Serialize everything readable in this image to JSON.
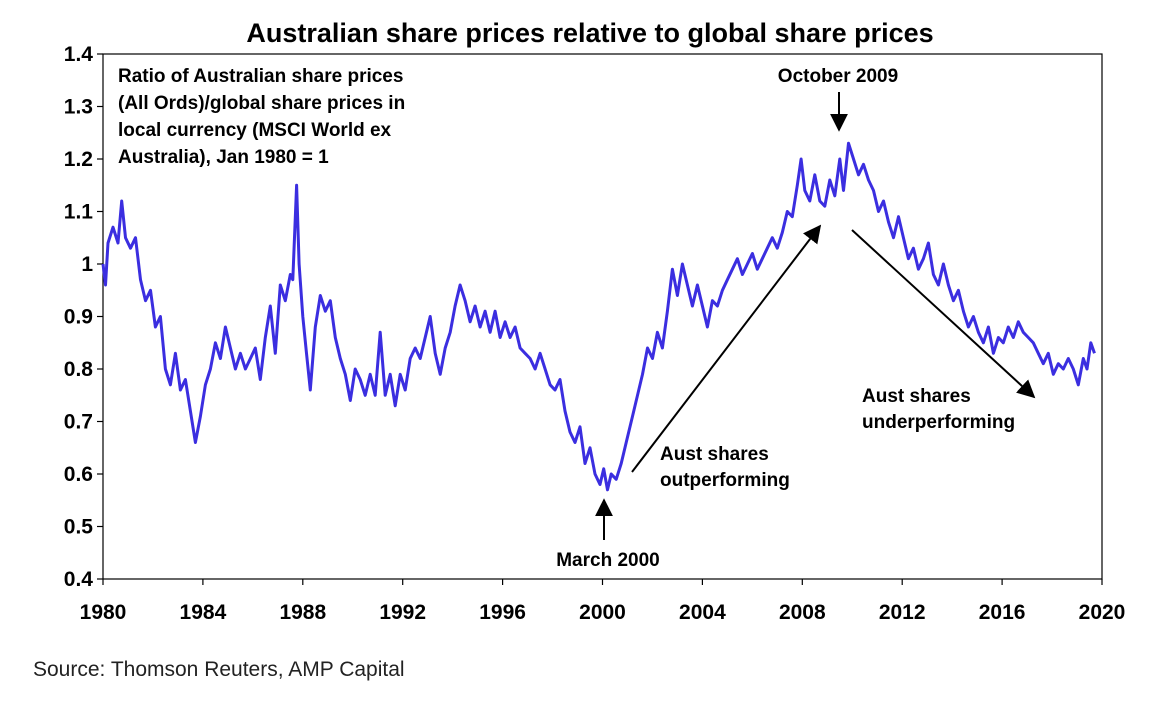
{
  "chart_data": {
    "type": "line",
    "title": "Australian share prices relative to global share prices",
    "xlabel": "",
    "ylabel": "",
    "xlim": [
      1980,
      2020
    ],
    "ylim": [
      0.4,
      1.4
    ],
    "x_ticks": [
      "1980",
      "1984",
      "1988",
      "1992",
      "1996",
      "2000",
      "2004",
      "2008",
      "2012",
      "2016",
      "2020"
    ],
    "y_ticks": [
      "0.4",
      "0.5",
      "0.6",
      "0.7",
      "0.8",
      "0.9",
      "1",
      "1.1",
      "1.2",
      "1.3",
      "1.4"
    ],
    "grid": false,
    "series_color": "#3b2ee0",
    "series": [
      {
        "values": [
          [
            1980.0,
            1.0
          ],
          [
            1980.1,
            0.96
          ],
          [
            1980.2,
            1.04
          ],
          [
            1980.4,
            1.07
          ],
          [
            1980.6,
            1.04
          ],
          [
            1980.75,
            1.12
          ],
          [
            1980.9,
            1.05
          ],
          [
            1981.1,
            1.03
          ],
          [
            1981.3,
            1.05
          ],
          [
            1981.5,
            0.97
          ],
          [
            1981.7,
            0.93
          ],
          [
            1981.9,
            0.95
          ],
          [
            1982.1,
            0.88
          ],
          [
            1982.3,
            0.9
          ],
          [
            1982.5,
            0.8
          ],
          [
            1982.7,
            0.77
          ],
          [
            1982.9,
            0.83
          ],
          [
            1983.1,
            0.76
          ],
          [
            1983.3,
            0.78
          ],
          [
            1983.5,
            0.72
          ],
          [
            1983.7,
            0.66
          ],
          [
            1983.9,
            0.71
          ],
          [
            1984.1,
            0.77
          ],
          [
            1984.3,
            0.8
          ],
          [
            1984.5,
            0.85
          ],
          [
            1984.7,
            0.82
          ],
          [
            1984.9,
            0.88
          ],
          [
            1985.1,
            0.84
          ],
          [
            1985.3,
            0.8
          ],
          [
            1985.5,
            0.83
          ],
          [
            1985.7,
            0.8
          ],
          [
            1985.9,
            0.82
          ],
          [
            1986.1,
            0.84
          ],
          [
            1986.3,
            0.78
          ],
          [
            1986.5,
            0.86
          ],
          [
            1986.7,
            0.92
          ],
          [
            1986.9,
            0.83
          ],
          [
            1987.1,
            0.96
          ],
          [
            1987.3,
            0.93
          ],
          [
            1987.5,
            0.98
          ],
          [
            1987.6,
            0.97
          ],
          [
            1987.75,
            1.15
          ],
          [
            1987.85,
            1.0
          ],
          [
            1988.0,
            0.9
          ],
          [
            1988.15,
            0.83
          ],
          [
            1988.3,
            0.76
          ],
          [
            1988.5,
            0.88
          ],
          [
            1988.7,
            0.94
          ],
          [
            1988.9,
            0.91
          ],
          [
            1989.1,
            0.93
          ],
          [
            1989.3,
            0.86
          ],
          [
            1989.5,
            0.82
          ],
          [
            1989.7,
            0.79
          ],
          [
            1989.9,
            0.74
          ],
          [
            1990.1,
            0.8
          ],
          [
            1990.3,
            0.78
          ],
          [
            1990.5,
            0.75
          ],
          [
            1990.7,
            0.79
          ],
          [
            1990.9,
            0.75
          ],
          [
            1991.1,
            0.87
          ],
          [
            1991.3,
            0.75
          ],
          [
            1991.5,
            0.79
          ],
          [
            1991.7,
            0.73
          ],
          [
            1991.9,
            0.79
          ],
          [
            1992.1,
            0.76
          ],
          [
            1992.3,
            0.82
          ],
          [
            1992.5,
            0.84
          ],
          [
            1992.7,
            0.82
          ],
          [
            1992.9,
            0.86
          ],
          [
            1993.1,
            0.9
          ],
          [
            1993.3,
            0.83
          ],
          [
            1993.5,
            0.79
          ],
          [
            1993.7,
            0.84
          ],
          [
            1993.9,
            0.87
          ],
          [
            1994.1,
            0.92
          ],
          [
            1994.3,
            0.96
          ],
          [
            1994.5,
            0.93
          ],
          [
            1994.7,
            0.89
          ],
          [
            1994.9,
            0.92
          ],
          [
            1995.1,
            0.88
          ],
          [
            1995.3,
            0.91
          ],
          [
            1995.5,
            0.87
          ],
          [
            1995.7,
            0.91
          ],
          [
            1995.9,
            0.86
          ],
          [
            1996.1,
            0.89
          ],
          [
            1996.3,
            0.86
          ],
          [
            1996.5,
            0.88
          ],
          [
            1996.7,
            0.84
          ],
          [
            1996.9,
            0.83
          ],
          [
            1997.1,
            0.82
          ],
          [
            1997.3,
            0.8
          ],
          [
            1997.5,
            0.83
          ],
          [
            1997.7,
            0.8
          ],
          [
            1997.9,
            0.77
          ],
          [
            1998.1,
            0.76
          ],
          [
            1998.3,
            0.78
          ],
          [
            1998.5,
            0.72
          ],
          [
            1998.7,
            0.68
          ],
          [
            1998.9,
            0.66
          ],
          [
            1999.1,
            0.69
          ],
          [
            1999.3,
            0.62
          ],
          [
            1999.5,
            0.65
          ],
          [
            1999.7,
            0.6
          ],
          [
            1999.9,
            0.58
          ],
          [
            2000.05,
            0.61
          ],
          [
            2000.2,
            0.57
          ],
          [
            2000.35,
            0.6
          ],
          [
            2000.55,
            0.59
          ],
          [
            2000.75,
            0.62
          ],
          [
            2000.95,
            0.66
          ],
          [
            2001.2,
            0.71
          ],
          [
            2001.4,
            0.75
          ],
          [
            2001.6,
            0.79
          ],
          [
            2001.8,
            0.84
          ],
          [
            2002.0,
            0.82
          ],
          [
            2002.2,
            0.87
          ],
          [
            2002.4,
            0.84
          ],
          [
            2002.6,
            0.91
          ],
          [
            2002.8,
            0.99
          ],
          [
            2003.0,
            0.94
          ],
          [
            2003.2,
            1.0
          ],
          [
            2003.4,
            0.96
          ],
          [
            2003.6,
            0.92
          ],
          [
            2003.8,
            0.96
          ],
          [
            2004.0,
            0.92
          ],
          [
            2004.2,
            0.88
          ],
          [
            2004.4,
            0.93
          ],
          [
            2004.6,
            0.92
          ],
          [
            2004.8,
            0.95
          ],
          [
            2005.0,
            0.97
          ],
          [
            2005.2,
            0.99
          ],
          [
            2005.4,
            1.01
          ],
          [
            2005.6,
            0.98
          ],
          [
            2005.8,
            1.0
          ],
          [
            2006.0,
            1.02
          ],
          [
            2006.2,
            0.99
          ],
          [
            2006.4,
            1.01
          ],
          [
            2006.6,
            1.03
          ],
          [
            2006.8,
            1.05
          ],
          [
            2007.0,
            1.03
          ],
          [
            2007.2,
            1.06
          ],
          [
            2007.4,
            1.1
          ],
          [
            2007.6,
            1.09
          ],
          [
            2007.8,
            1.15
          ],
          [
            2007.95,
            1.2
          ],
          [
            2008.1,
            1.14
          ],
          [
            2008.3,
            1.12
          ],
          [
            2008.5,
            1.17
          ],
          [
            2008.7,
            1.12
          ],
          [
            2008.9,
            1.11
          ],
          [
            2009.1,
            1.16
          ],
          [
            2009.3,
            1.13
          ],
          [
            2009.5,
            1.2
          ],
          [
            2009.65,
            1.14
          ],
          [
            2009.85,
            1.23
          ],
          [
            2010.05,
            1.2
          ],
          [
            2010.25,
            1.17
          ],
          [
            2010.45,
            1.19
          ],
          [
            2010.65,
            1.16
          ],
          [
            2010.85,
            1.14
          ],
          [
            2011.05,
            1.1
          ],
          [
            2011.25,
            1.12
          ],
          [
            2011.45,
            1.08
          ],
          [
            2011.65,
            1.05
          ],
          [
            2011.85,
            1.09
          ],
          [
            2012.05,
            1.05
          ],
          [
            2012.25,
            1.01
          ],
          [
            2012.45,
            1.03
          ],
          [
            2012.65,
            0.99
          ],
          [
            2012.85,
            1.01
          ],
          [
            2013.05,
            1.04
          ],
          [
            2013.25,
            0.98
          ],
          [
            2013.45,
            0.96
          ],
          [
            2013.65,
            1.0
          ],
          [
            2013.85,
            0.96
          ],
          [
            2014.05,
            0.93
          ],
          [
            2014.25,
            0.95
          ],
          [
            2014.45,
            0.91
          ],
          [
            2014.65,
            0.88
          ],
          [
            2014.85,
            0.9
          ],
          [
            2015.05,
            0.87
          ],
          [
            2015.25,
            0.85
          ],
          [
            2015.45,
            0.88
          ],
          [
            2015.65,
            0.83
          ],
          [
            2015.85,
            0.86
          ],
          [
            2016.05,
            0.85
          ],
          [
            2016.25,
            0.88
          ],
          [
            2016.45,
            0.86
          ],
          [
            2016.65,
            0.89
          ],
          [
            2016.85,
            0.87
          ],
          [
            2017.05,
            0.86
          ],
          [
            2017.25,
            0.85
          ],
          [
            2017.45,
            0.83
          ],
          [
            2017.65,
            0.81
          ],
          [
            2017.85,
            0.83
          ],
          [
            2018.05,
            0.79
          ],
          [
            2018.25,
            0.81
          ],
          [
            2018.45,
            0.8
          ],
          [
            2018.65,
            0.82
          ],
          [
            2018.85,
            0.8
          ],
          [
            2019.05,
            0.77
          ],
          [
            2019.25,
            0.82
          ],
          [
            2019.4,
            0.8
          ],
          [
            2019.55,
            0.85
          ],
          [
            2019.7,
            0.83
          ]
        ]
      }
    ],
    "annotations": {
      "description": [
        "Ratio of Australian share prices",
        "(All Ords)/global share prices in",
        "local currency (MSCI World ex",
        "Australia), Jan 1980 = 1"
      ],
      "peak_label": "October 2009",
      "trough_label": "March 2000",
      "outperform": [
        "Aust shares",
        "outperforming"
      ],
      "underperform": [
        "Aust shares",
        "underperforming"
      ]
    },
    "source": "Source: Thomson Reuters, AMP Capital"
  }
}
